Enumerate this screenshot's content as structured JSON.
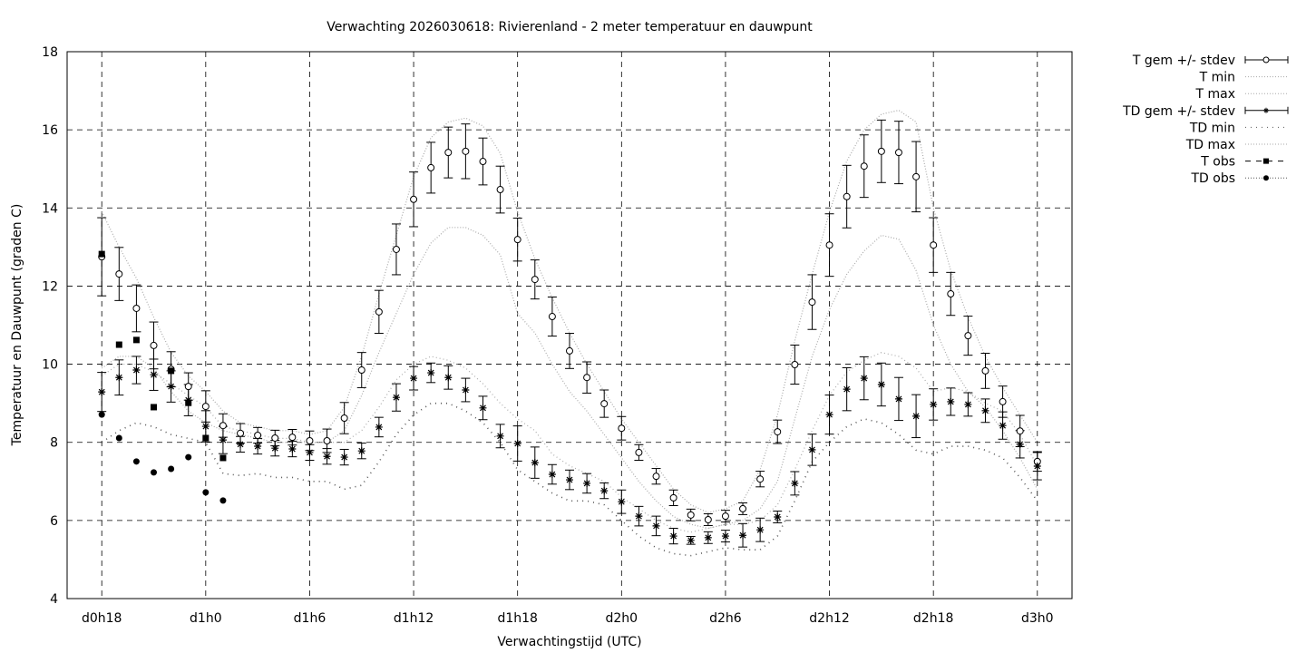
{
  "chart_data": {
    "type": "line",
    "title": "Verwachting 2026030618: Rivierenland - 2 meter temperatuur en dauwpunt",
    "xlabel": "Verwachtingstijd (UTC)",
    "ylabel": "Temperatuur en Dauwpunt (graden C)",
    "xlim": [
      16,
      74
    ],
    "ylim": [
      4,
      18
    ],
    "yticks": [
      4,
      6,
      8,
      10,
      12,
      14,
      16,
      18
    ],
    "xticks": [
      {
        "v": 18,
        "label": "d0h18"
      },
      {
        "v": 24,
        "label": "d1h0"
      },
      {
        "v": 30,
        "label": "d1h6"
      },
      {
        "v": 36,
        "label": "d1h12"
      },
      {
        "v": 42,
        "label": "d1h18"
      },
      {
        "v": 48,
        "label": "d2h0"
      },
      {
        "v": 54,
        "label": "d2h6"
      },
      {
        "v": 60,
        "label": "d2h12"
      },
      {
        "v": 66,
        "label": "d2h18"
      },
      {
        "v": 72,
        "label": "d3h0"
      }
    ],
    "grid": true,
    "legend_position": "outside-right-top",
    "x_start": 18,
    "legend": [
      "T gem +/- stdev",
      "T min",
      "T max",
      "TD gem +/- stdev",
      "TD min",
      "TD max",
      "T obs",
      "TD obs"
    ],
    "T_mean": [
      12.75,
      12.31,
      11.43,
      10.48,
      9.87,
      9.43,
      8.92,
      8.43,
      8.23,
      8.18,
      8.11,
      8.13,
      8.04,
      8.04,
      8.62,
      9.85,
      11.34,
      12.94,
      14.22,
      15.03,
      15.42,
      15.45,
      15.19,
      14.47,
      13.19,
      12.17,
      11.22,
      10.34,
      9.66,
      8.99,
      8.36,
      7.74,
      7.13,
      6.58,
      6.14,
      6.02,
      6.11,
      6.3,
      7.06,
      8.27,
      9.99,
      11.59,
      13.05,
      14.29,
      15.07,
      15.45,
      15.42,
      14.8,
      13.05,
      11.8,
      10.73,
      9.83,
      9.04,
      8.29,
      7.51
    ],
    "T_sd": [
      1.0,
      0.68,
      0.6,
      0.6,
      0.45,
      0.35,
      0.4,
      0.3,
      0.25,
      0.2,
      0.2,
      0.2,
      0.25,
      0.3,
      0.4,
      0.45,
      0.55,
      0.65,
      0.7,
      0.65,
      0.65,
      0.7,
      0.6,
      0.6,
      0.55,
      0.5,
      0.5,
      0.45,
      0.4,
      0.35,
      0.3,
      0.2,
      0.2,
      0.2,
      0.15,
      0.15,
      0.15,
      0.15,
      0.2,
      0.3,
      0.5,
      0.7,
      0.8,
      0.8,
      0.8,
      0.8,
      0.8,
      0.9,
      0.7,
      0.55,
      0.5,
      0.45,
      0.4,
      0.4,
      0.25
    ],
    "TD_mean": [
      9.29,
      9.66,
      9.85,
      9.73,
      9.43,
      9.08,
      8.41,
      8.06,
      7.95,
      7.9,
      7.85,
      7.83,
      7.74,
      7.64,
      7.62,
      7.78,
      8.39,
      9.15,
      9.64,
      9.78,
      9.66,
      9.34,
      8.88,
      8.16,
      7.97,
      7.48,
      7.18,
      7.04,
      6.95,
      6.76,
      6.48,
      6.11,
      5.86,
      5.6,
      5.49,
      5.56,
      5.6,
      5.62,
      5.76,
      6.09,
      6.95,
      7.81,
      8.71,
      9.36,
      9.64,
      9.48,
      9.11,
      8.67,
      8.97,
      9.04,
      8.97,
      8.81,
      8.43,
      7.95,
      7.39
    ],
    "TD_sd": [
      0.5,
      0.45,
      0.35,
      0.4,
      0.4,
      0.4,
      0.4,
      0.35,
      0.2,
      0.2,
      0.2,
      0.2,
      0.2,
      0.2,
      0.2,
      0.2,
      0.25,
      0.35,
      0.3,
      0.25,
      0.3,
      0.3,
      0.3,
      0.3,
      0.45,
      0.4,
      0.25,
      0.25,
      0.25,
      0.2,
      0.3,
      0.25,
      0.25,
      0.2,
      0.1,
      0.15,
      0.15,
      0.3,
      0.3,
      0.15,
      0.3,
      0.4,
      0.5,
      0.55,
      0.55,
      0.55,
      0.55,
      0.55,
      0.4,
      0.35,
      0.3,
      0.3,
      0.35,
      0.35,
      0.35
    ],
    "T_max": [
      13.9,
      13.0,
      12.2,
      11.2,
      10.3,
      9.7,
      9.3,
      8.8,
      8.5,
      8.4,
      8.3,
      8.3,
      8.2,
      8.3,
      8.9,
      10.2,
      11.8,
      13.3,
      14.8,
      15.8,
      16.2,
      16.3,
      16.1,
      15.4,
      13.9,
      12.7,
      11.7,
      10.8,
      10.0,
      9.3,
      8.6,
      8.0,
      7.4,
      6.8,
      6.4,
      6.2,
      6.3,
      6.5,
      7.3,
      8.7,
      10.6,
      12.3,
      13.9,
      15.2,
      16.0,
      16.4,
      16.5,
      16.2,
      14.0,
      12.4,
      11.2,
      10.2,
      9.4,
      8.7,
      8.0
    ],
    "T_min": [
      9.9,
      10.2,
      10.2,
      9.9,
      9.3,
      8.8,
      8.5,
      8.3,
      8.2,
      8.1,
      8.0,
      8.0,
      8.0,
      8.0,
      8.3,
      9.2,
      10.3,
      11.3,
      12.3,
      13.1,
      13.5,
      13.5,
      13.3,
      12.8,
      11.3,
      10.8,
      10.0,
      9.3,
      8.8,
      8.2,
      7.6,
      7.0,
      6.5,
      6.1,
      5.9,
      5.8,
      5.9,
      6.0,
      6.3,
      7.0,
      8.6,
      10.2,
      11.4,
      12.3,
      12.9,
      13.3,
      13.2,
      12.4,
      11.0,
      10.0,
      9.3,
      8.9,
      8.3,
      7.6,
      6.8
    ],
    "TD_max": [
      9.7,
      10.0,
      10.0,
      9.8,
      9.5,
      9.2,
      8.9,
      8.4,
      8.3,
      8.2,
      8.1,
      8.1,
      8.0,
      8.0,
      8.0,
      8.3,
      8.9,
      9.6,
      10.0,
      10.2,
      10.1,
      9.9,
      9.5,
      9.0,
      8.6,
      8.3,
      7.7,
      7.4,
      7.2,
      7.0,
      6.6,
      6.3,
      6.0,
      5.8,
      5.7,
      5.8,
      5.9,
      5.9,
      6.0,
      6.4,
      7.3,
      8.3,
      9.2,
      9.8,
      10.1,
      10.3,
      10.2,
      9.9,
      9.3,
      9.4,
      9.3,
      9.0,
      8.8,
      8.2,
      7.4
    ],
    "TD_min": [
      8.0,
      8.3,
      8.5,
      8.4,
      8.2,
      8.1,
      8.0,
      7.2,
      7.15,
      7.2,
      7.1,
      7.1,
      7.0,
      7.0,
      6.8,
      6.9,
      7.5,
      8.2,
      8.7,
      9.0,
      9.0,
      8.8,
      8.5,
      8.0,
      7.3,
      7.0,
      6.7,
      6.5,
      6.5,
      6.4,
      6.0,
      5.6,
      5.3,
      5.15,
      5.1,
      5.2,
      5.3,
      5.25,
      5.25,
      5.6,
      6.5,
      7.5,
      8.0,
      8.4,
      8.6,
      8.5,
      8.2,
      7.8,
      7.7,
      7.9,
      7.9,
      7.8,
      7.6,
      7.1,
      6.5
    ],
    "T_obs": [
      12.82,
      10.5,
      10.62,
      8.9,
      9.83,
      9.01,
      8.11,
      7.6
    ],
    "TD_obs": [
      8.71,
      8.11,
      7.51,
      7.23,
      7.32,
      7.62,
      6.72,
      6.51
    ]
  }
}
